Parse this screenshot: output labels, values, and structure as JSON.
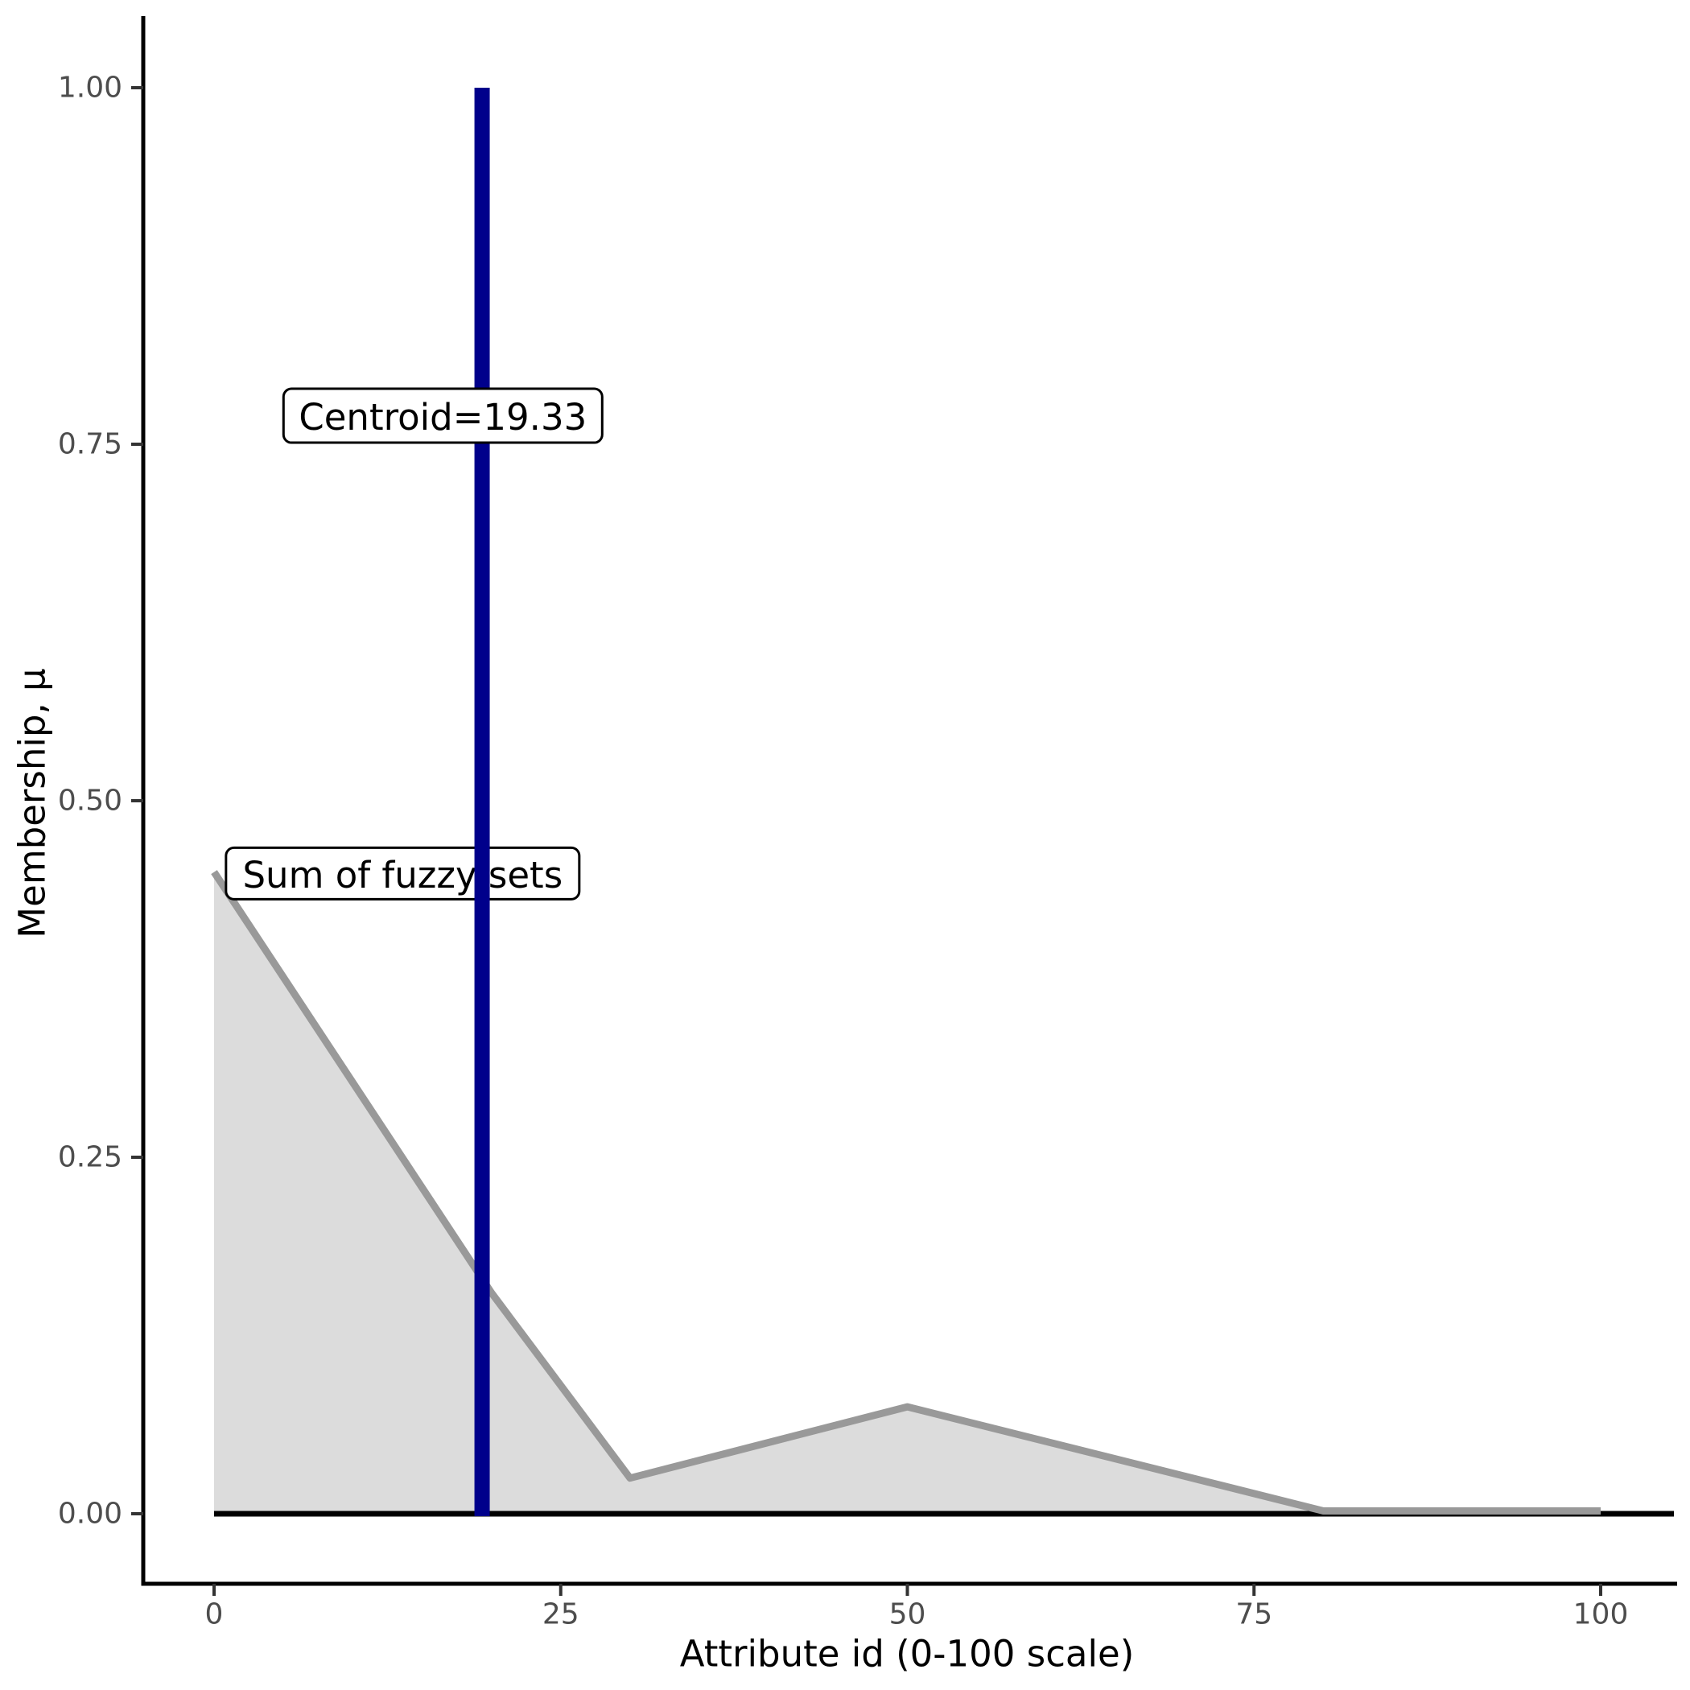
{
  "chart_data": {
    "type": "area",
    "title": "",
    "xlabel": "Attribute id (0-100 scale)",
    "ylabel": "Membership, μ",
    "grid": false,
    "legend": "none",
    "xlim": [
      -5.1,
      105.5
    ],
    "ylim": [
      -0.05,
      1.05
    ],
    "x_ticks": {
      "values": [
        0,
        25,
        50,
        75,
        100
      ],
      "labels": [
        "0",
        "25",
        "50",
        "75",
        "100"
      ]
    },
    "y_ticks": {
      "values": [
        0,
        0.25,
        0.5,
        0.75,
        1.0
      ],
      "labels": [
        "0.00",
        "0.25",
        "0.50",
        "0.75",
        "1.00"
      ]
    },
    "series": [
      {
        "name": "Sum of fuzzy sets",
        "x": [
          0,
          20,
          30,
          50,
          80,
          100
        ],
        "y": [
          0.45,
          0.155,
          0.025,
          0.075,
          0.002,
          0.002
        ]
      }
    ],
    "baseline_y": 0,
    "vline": {
      "x": 19.33,
      "label": "Centroid=19.33"
    },
    "annotations": [
      {
        "id": "sum",
        "text": "Sum of fuzzy sets",
        "x": 13.6,
        "y": 0.449,
        "above_vline": false
      },
      {
        "id": "centroid",
        "text": "Centroid=19.33",
        "x": 16.5,
        "y": 0.77,
        "above_vline": true
      }
    ],
    "colors": {
      "line": "#999999",
      "fill": "#DCDCDC",
      "vline": "#00008B",
      "axis": "#000000",
      "tick": "#333333",
      "tick_label": "#4D4D4D",
      "axis_title": "#000000",
      "baseline": "#000000",
      "label_box_bg": "#FFFFFF",
      "label_box_border": "#000000",
      "label_text": "#000000"
    }
  }
}
